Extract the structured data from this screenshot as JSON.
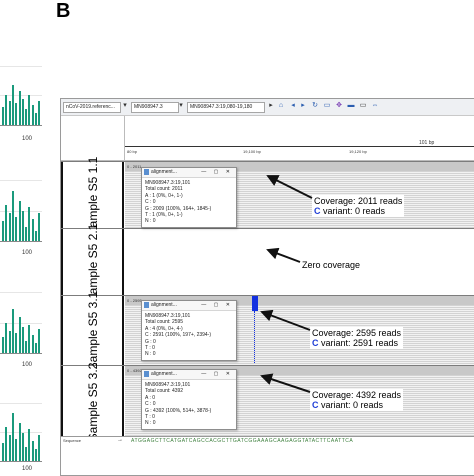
{
  "panel_label": "B",
  "left_panel": {
    "axis_value": "100",
    "plots": [
      {
        "heights": [
          18,
          30,
          24,
          40,
          22,
          34,
          26,
          16,
          30,
          20,
          12,
          24
        ]
      },
      {
        "heights": [
          20,
          36,
          28,
          50,
          24,
          40,
          30,
          14,
          34,
          22,
          10,
          28
        ]
      },
      {
        "heights": [
          16,
          30,
          22,
          44,
          20,
          36,
          26,
          12,
          28,
          18,
          10,
          24
        ]
      },
      {
        "heights": [
          18,
          34,
          26,
          48,
          22,
          38,
          28,
          14,
          32,
          20,
          12,
          26
        ]
      }
    ]
  },
  "toolbar": {
    "genome": "nCoV-2019.referenc...",
    "chromosome": "MN908947.3",
    "locus": "MN908947.3:19,080-19,180"
  },
  "ruler": {
    "span_label": "101 bp",
    "tick_left": "80 bp",
    "tick_mid": "19,100 bp",
    "tick_right": "19,120 bp"
  },
  "samples": [
    {
      "label": "Sample S5 1.1",
      "range": "0 - 2011",
      "popup": {
        "title": "alignment...",
        "lines": [
          "MN908947.3:19,101",
          "Total count: 2011",
          "A : 1 (0%, 0+, 1-)",
          "C : 0",
          "G : 2009 (100%, 164+, 1845-)",
          "T : 1 (0%, 0+, 1-)",
          "N : 0"
        ]
      },
      "annotation": {
        "line1": "Coverage: 2011 reads",
        "variant_letter": "C",
        "line2_rest": " variant: 0 reads"
      }
    },
    {
      "label": "Sample S5 2.1",
      "annotation": {
        "line1": "Zero coverage"
      }
    },
    {
      "label": "Sample S5 3.1",
      "range": "0 - 2595",
      "popup": {
        "title": "alignment...",
        "lines": [
          "MN908947.3:19,101",
          "Total count: 2595",
          "A : 4 (0%, 0+, 4-)",
          "C : 2591 (100%, 197+, 2394-)",
          "G : 0",
          "T : 0",
          "N : 0"
        ]
      },
      "annotation": {
        "line1": "Coverage: 2595 reads",
        "variant_letter": "C",
        "line2_rest": " variant: 2591 reads"
      }
    },
    {
      "label": "Sample S5 3.2",
      "range": "0 - 4392",
      "popup": {
        "title": "alignment...",
        "lines": [
          "MN908947.3:19,101",
          "Total count: 4392",
          "A : 0",
          "C : 0",
          "G : 4392 (100%, 514+, 3878-)",
          "T : 0",
          "N : 0"
        ]
      },
      "annotation": {
        "line1": "Coverage: 4392 reads",
        "variant_letter": "C",
        "line2_rest": " variant: 0 reads"
      }
    }
  ],
  "sequence_track": {
    "label": "Sequence",
    "bases": "ATGGAGCTTCATGATCAGCCACGCTTGATCGGAAAGCAAGAGGTATACTTCAATTCA"
  },
  "colors": {
    "bar": "#1a9a7c",
    "variant": "#1330e0",
    "coverage": "#c8c8c8"
  }
}
